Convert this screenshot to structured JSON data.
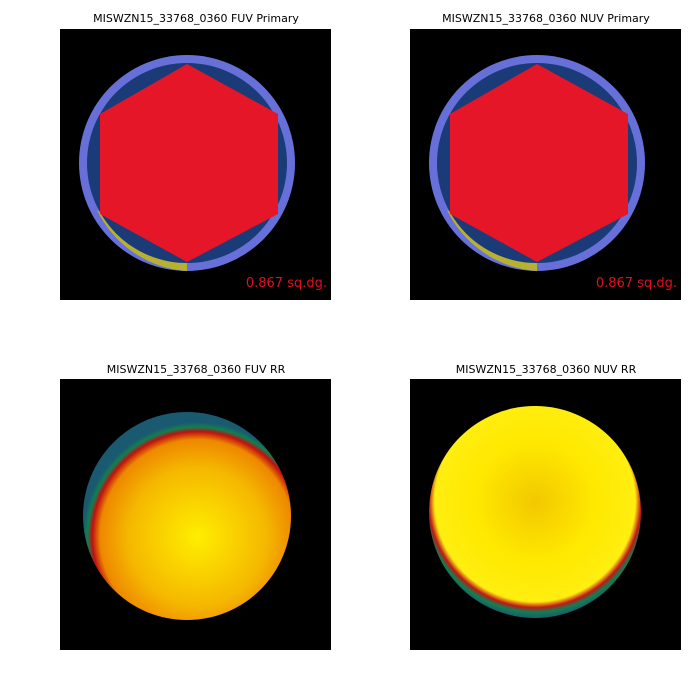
{
  "panels": [
    {
      "title": "MISWZN15_33768_0360 FUV Primary",
      "area_label": "0.867 sq.dg."
    },
    {
      "title": "MISWZN15_33768_0360 NUV Primary",
      "area_label": "0.867 sq.dg."
    },
    {
      "title": "MISWZN15_33768_0360 FUV RR"
    },
    {
      "title": "MISWZN15_33768_0360 NUV RR"
    }
  ]
}
